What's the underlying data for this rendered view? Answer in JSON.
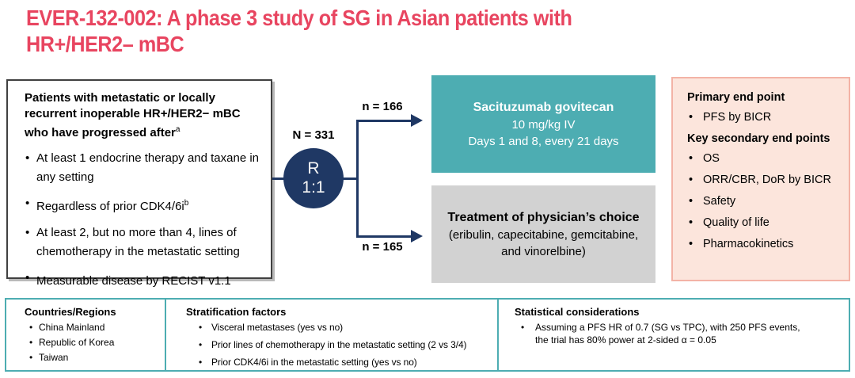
{
  "title": {
    "line1": "EVER-132-002: A phase 3 study of SG in Asian patients with",
    "line2": "HR+/HER2– mBC"
  },
  "patients_box": {
    "heading": "Patients with metastatic or locally recurrent inoperable HR+/HER2− mBC who have progressed after",
    "heading_sup": "a",
    "bullets": [
      {
        "text": "At least 1 endocrine therapy and taxane in any setting",
        "sup": ""
      },
      {
        "text": "Regardless of prior CDK4/6i",
        "sup": "b"
      },
      {
        "text": "At least 2, but no more than 4, lines of chemotherapy in the metastatic setting",
        "sup": ""
      },
      {
        "text": "Measurable disease by RECIST v1.1",
        "sup": ""
      }
    ]
  },
  "randomization": {
    "n_total": "N = 331",
    "circle_top": "R",
    "circle_bottom": "1:1",
    "arm1_n": "n = 166",
    "arm2_n": "n = 165"
  },
  "arm_sg": {
    "line1": "Sacituzumab govitecan",
    "line2": "10 mg/kg IV",
    "line3": "Days 1 and 8, every 21 days"
  },
  "arm_tpc": {
    "line1": "Treatment of physician’s choice",
    "line2": "(eribulin, capecitabine, gemcitabine,",
    "line3": "and vinorelbine)"
  },
  "endpoints": {
    "primary_heading": "Primary end point",
    "primary_bullets": [
      "PFS by BICR"
    ],
    "secondary_heading": "Key secondary end points",
    "secondary_bullets": [
      "OS",
      "ORR/CBR, DoR by BICR",
      "Safety",
      "Quality of life",
      "Pharmacokinetics"
    ]
  },
  "footer": {
    "countries": {
      "heading": "Countries/Regions",
      "bullets": [
        "China Mainland",
        "Republic of Korea",
        "Taiwan"
      ]
    },
    "stratification": {
      "heading": "Stratification factors",
      "bullets": [
        "Visceral metastases (yes vs no)",
        "Prior lines of chemotherapy in the metastatic setting (2 vs 3/4)",
        "Prior CDK4/6i in the metastatic setting (yes vs no)"
      ]
    },
    "statistics": {
      "heading": "Statistical considerations",
      "bullet_line1": "Assuming a PFS HR of 0.7 (SG vs TPC), with 250 PFS events,",
      "bullet_line2": "the trial has 80% power at 2-sided α = 0.05"
    }
  },
  "colors": {
    "title_pink": "#E84560",
    "navy": "#1F3864",
    "teal": "#4DADB2",
    "gray": "#D2D2D2",
    "peach_bg": "#FCE5DC",
    "peach_border": "#F3B3A6",
    "box_border_dark": "#404040"
  }
}
